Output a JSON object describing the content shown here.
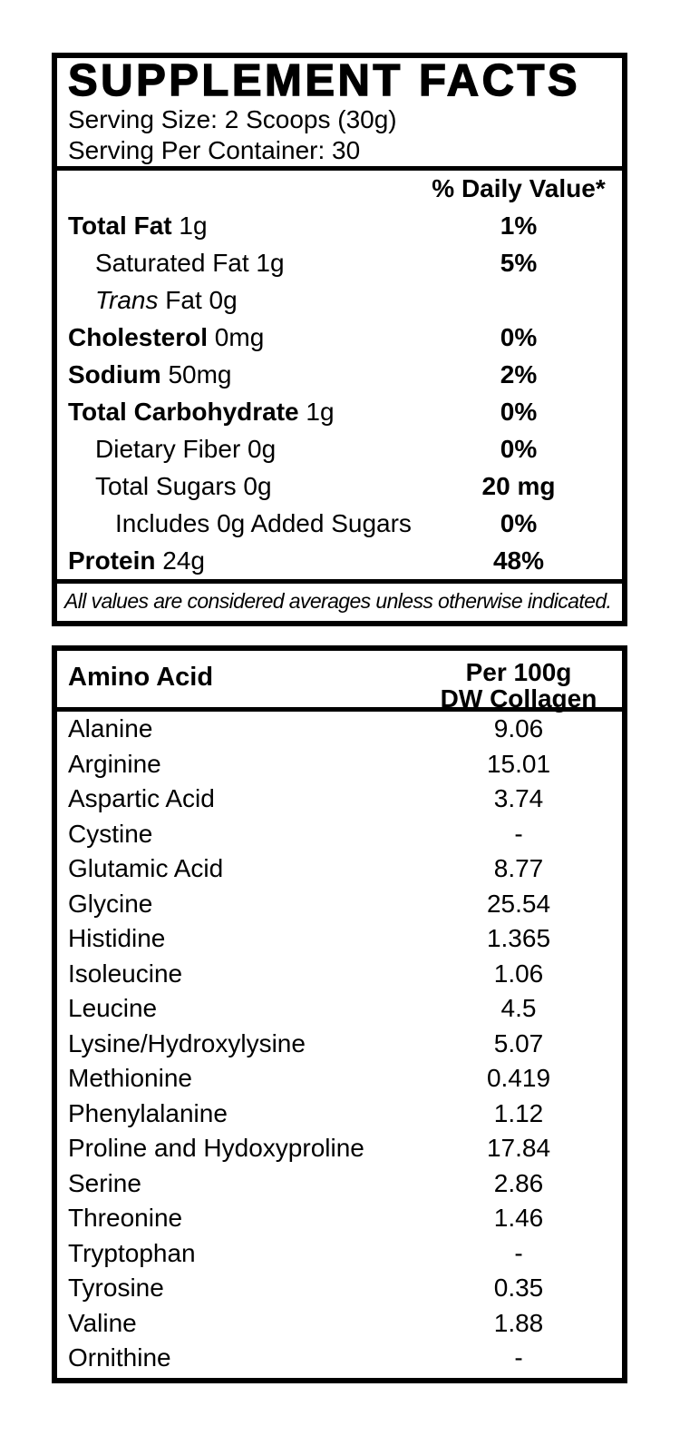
{
  "colors": {
    "ink": "#000000",
    "background": "#ffffff"
  },
  "supplement_facts": {
    "title": "SUPPLEMENT FACTS",
    "serving_size": "Serving Size: 2 Scoops (30g)",
    "servings_per_container": "Serving Per Container: 30",
    "daily_value_header": "% Daily Value*",
    "rows": [
      {
        "segments": [
          {
            "text": "Total Fat",
            "bold": true
          },
          {
            "text": " 1g"
          }
        ],
        "indent": 0,
        "value": "1%"
      },
      {
        "segments": [
          {
            "text": "Saturated Fat 1g"
          }
        ],
        "indent": 1,
        "value": "5%"
      },
      {
        "segments": [
          {
            "text": "Trans",
            "italic": true
          },
          {
            "text": " Fat 0g"
          }
        ],
        "indent": 1,
        "value": ""
      },
      {
        "segments": [
          {
            "text": "Cholesterol",
            "bold": true
          },
          {
            "text": " 0mg"
          }
        ],
        "indent": 0,
        "value": "0%"
      },
      {
        "segments": [
          {
            "text": "Sodium",
            "bold": true
          },
          {
            "text": " 50mg"
          }
        ],
        "indent": 0,
        "value": "2%"
      },
      {
        "segments": [
          {
            "text": "Total Carbohydrate",
            "bold": true
          },
          {
            "text": " 1g"
          }
        ],
        "indent": 0,
        "value": "0%"
      },
      {
        "segments": [
          {
            "text": "Dietary Fiber 0g"
          }
        ],
        "indent": 1,
        "value": "0%"
      },
      {
        "segments": [
          {
            "text": "Total Sugars 0g"
          }
        ],
        "indent": 1,
        "value": "20 mg"
      },
      {
        "segments": [
          {
            "text": "Includes 0g Added Sugars"
          }
        ],
        "indent": 2,
        "value": "0%"
      },
      {
        "segments": [
          {
            "text": "Protein",
            "bold": true
          },
          {
            "text": " 24g"
          }
        ],
        "indent": 0,
        "value": "48%"
      }
    ],
    "footnote": "All values are considered averages unless otherwise indicated."
  },
  "amino_acids": {
    "column1_header": "Amino Acid",
    "column2_header": [
      "Per 100g",
      "DW Collagen"
    ],
    "rows": [
      {
        "name": "Alanine",
        "value": "9.06"
      },
      {
        "name": "Arginine",
        "value": "15.01"
      },
      {
        "name": "Aspartic Acid",
        "value": "3.74"
      },
      {
        "name": "Cystine",
        "value": "-"
      },
      {
        "name": "Glutamic Acid",
        "value": "8.77"
      },
      {
        "name": "Glycine",
        "value": "25.54"
      },
      {
        "name": "Histidine",
        "value": "1.365"
      },
      {
        "name": "Isoleucine",
        "value": "1.06"
      },
      {
        "name": "Leucine",
        "value": "4.5"
      },
      {
        "name": "Lysine/Hydroxylysine",
        "value": "5.07"
      },
      {
        "name": "Methionine",
        "value": "0.419"
      },
      {
        "name": "Phenylalanine",
        "value": "1.12"
      },
      {
        "name": "Proline and Hydoxyproline",
        "value": "17.84"
      },
      {
        "name": "Serine",
        "value": "2.86"
      },
      {
        "name": "Threonine",
        "value": "1.46"
      },
      {
        "name": "Tryptophan",
        "value": "-"
      },
      {
        "name": "Tyrosine",
        "value": "0.35"
      },
      {
        "name": "Valine",
        "value": "1.88"
      },
      {
        "name": "Ornithine",
        "value": "-"
      }
    ]
  }
}
